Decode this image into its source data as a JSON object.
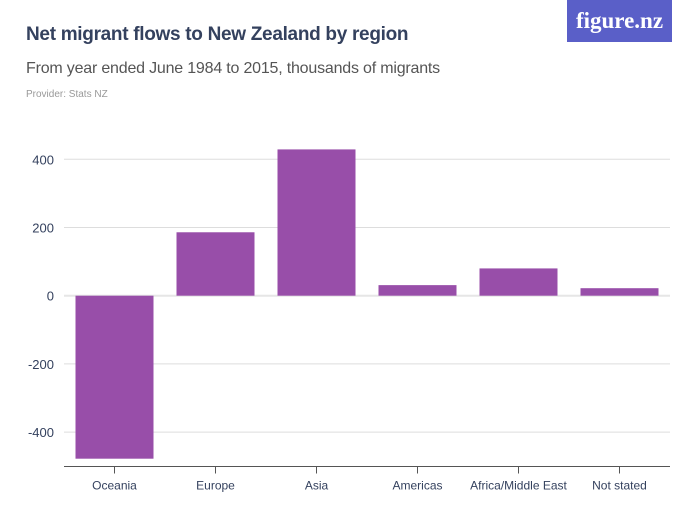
{
  "logo": "figure.nz",
  "chart_data": {
    "type": "bar",
    "title": "Net migrant flows to New Zealand by region",
    "subtitle": "From year ended June 1984 to 2015, thousands of migrants",
    "provider": "Provider: Stats NZ",
    "categories": [
      "Oceania",
      "Europe",
      "Asia",
      "Americas",
      "Africa/Middle East",
      "Not stated"
    ],
    "values": [
      -478,
      186,
      429,
      31,
      80,
      22
    ],
    "ylim": [
      -500,
      450
    ],
    "yticks": [
      400,
      200,
      0,
      -200,
      -400
    ],
    "ytick_labels": [
      "400",
      "200",
      "0",
      "-200",
      "-400"
    ],
    "grid": true,
    "colors": {
      "bar": "#984ea9",
      "grid": "#dddddd",
      "text": "#34415e"
    }
  }
}
